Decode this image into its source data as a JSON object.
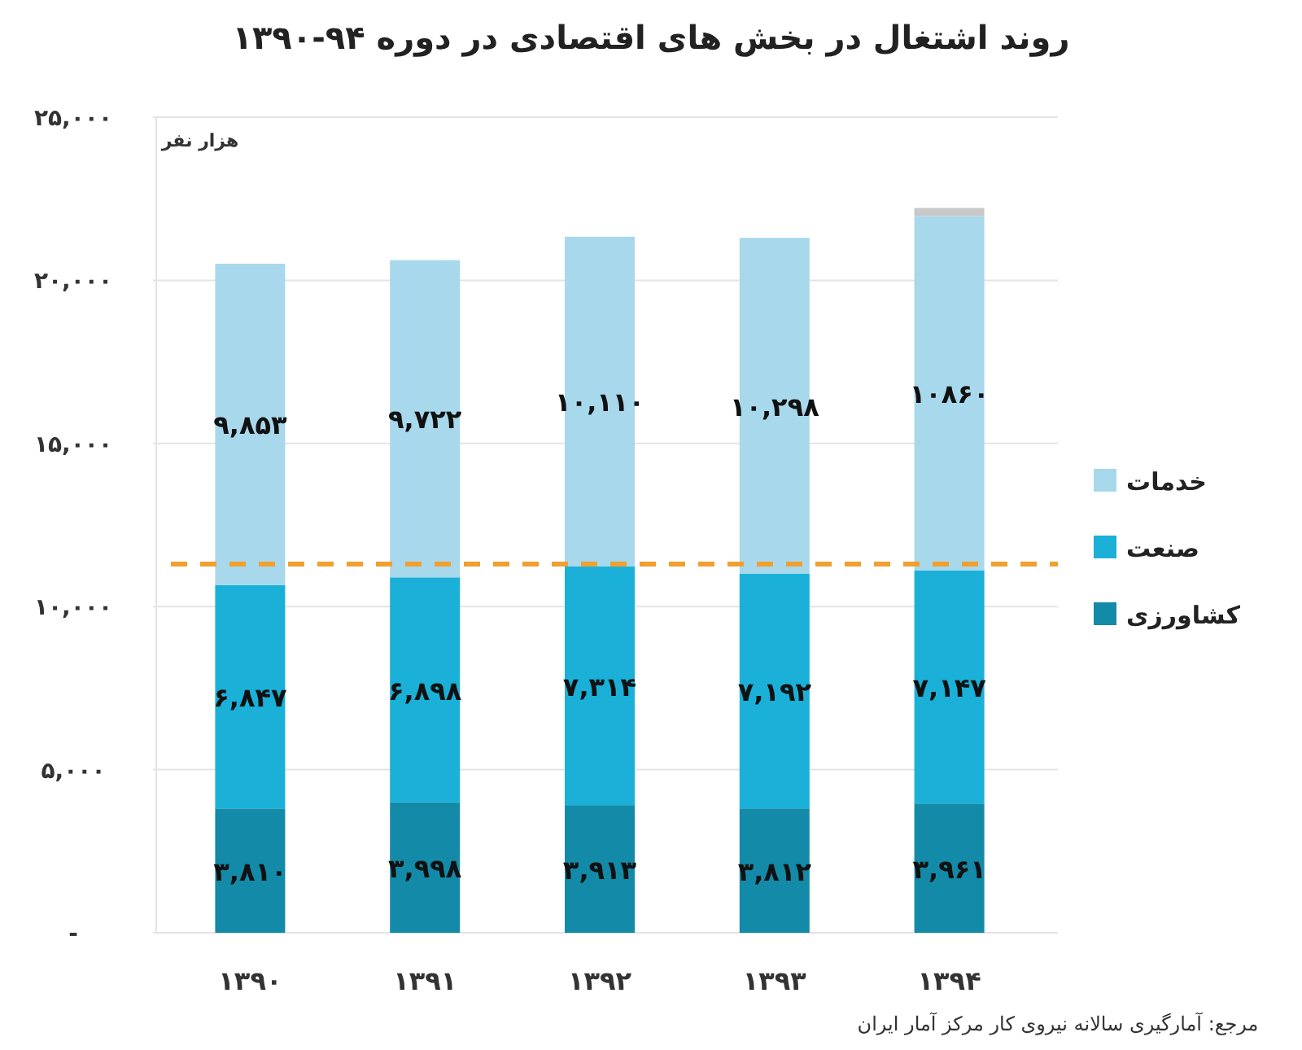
{
  "chart_data": {
    "type": "bar",
    "stacked": true,
    "title": "روند اشتغال در بخش های اقتصادی در دوره ۹۴-۱۳۹۰",
    "categories": [
      "۱۳۹۰",
      "۱۳۹۱",
      "۱۳۹۲",
      "۱۳۹۳",
      "۱۳۹۴"
    ],
    "series": [
      {
        "name": "کشاورزی",
        "color": "#138aa8",
        "values": [
          3810,
          3998,
          3913,
          3812,
          3961
        ],
        "value_labels": [
          "۳,۸۱۰",
          "۳,۹۹۸",
          "۳,۹۱۳",
          "۳,۸۱۲",
          "۳,۹۶۱"
        ]
      },
      {
        "name": "صنعت",
        "color": "#1ab0d8",
        "values": [
          6847,
          6898,
          7314,
          7192,
          7147
        ],
        "value_labels": [
          "۶,۸۴۷",
          "۶,۸۹۸",
          "۷,۳۱۴",
          "۷,۱۹۲",
          "۷,۱۴۷"
        ]
      },
      {
        "name": "خدمات",
        "color": "#a8d8ec",
        "values": [
          9853,
          9722,
          10110,
          10298,
          10860
        ],
        "value_labels": [
          "۹,۸۵۳",
          "۹,۷۲۲",
          "۱۰,۱۱۰",
          "۱۰,۲۹۸",
          "۱۰۸۶۰"
        ]
      },
      {
        "color": "#c8c8c8",
        "values": [
          null,
          null,
          null,
          null,
          250
        ]
      }
    ],
    "ylim": [
      0,
      25000
    ],
    "yticks": [
      {
        "value": 0,
        "label": "-"
      },
      {
        "value": 5000,
        "label": "۵,۰۰۰"
      },
      {
        "value": 10000,
        "label": "۱۰,۰۰۰"
      },
      {
        "value": 15000,
        "label": "۱۵,۰۰۰"
      },
      {
        "value": 20000,
        "label": "۲۰,۰۰۰"
      },
      {
        "value": 25000,
        "label": "۲۵,۰۰۰"
      }
    ],
    "grid": "y",
    "legend": "right",
    "ref_lines": [
      {
        "axis": "y",
        "value": 11300,
        "color": "#f0a030",
        "line_style": "dashed"
      }
    ],
    "annotations": [
      "هزار نفر",
      "مرجع: آمارگیری سالانه نیروی کار مرکز آمار ایران"
    ]
  }
}
